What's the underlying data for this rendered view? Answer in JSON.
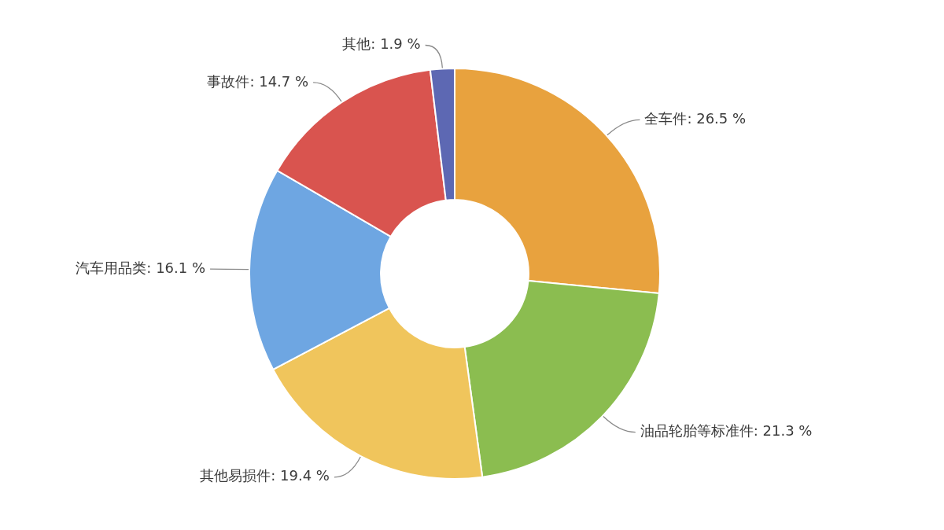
{
  "chart_data": {
    "type": "donut",
    "categories": [
      "全车件",
      "油品轮胎等标准件",
      "其他易损件",
      "汽车用品类",
      "事故件",
      "其他"
    ],
    "values": [
      26.5,
      21.3,
      19.4,
      16.1,
      14.7,
      1.9
    ],
    "colors": [
      "#e8a23e",
      "#8bbd50",
      "#f0c55c",
      "#6ea6e2",
      "#d9544f",
      "#5d68b3"
    ],
    "value_labels": [
      "26.5 %",
      "21.3 %",
      "19.4 %",
      "16.1 %",
      "14.7 %",
      "1.9 %"
    ]
  }
}
